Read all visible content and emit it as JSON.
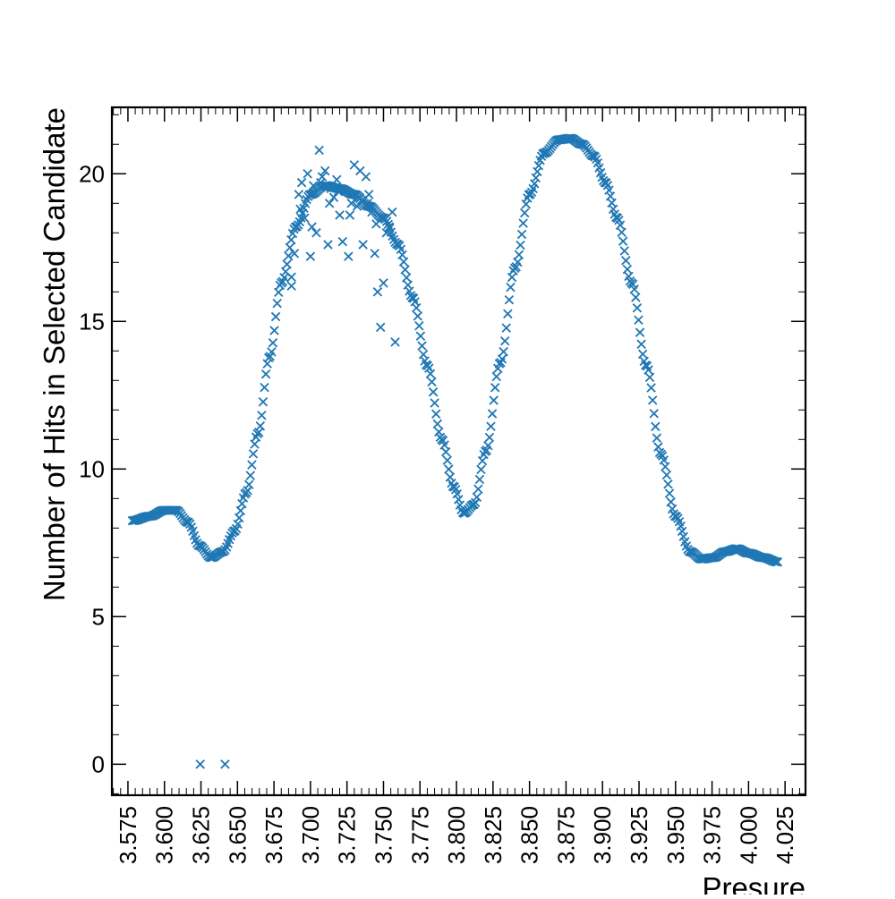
{
  "chart_data": {
    "type": "scatter",
    "title": "",
    "xlabel": "Presure",
    "ylabel": "Number of Hits in Selected Candidate",
    "xlim": [
      3.564,
      4.039
    ],
    "ylim": [
      -1.05,
      22.25
    ],
    "x_ticks": [
      "3.575",
      "3.600",
      "3.625",
      "3.650",
      "3.675",
      "3.700",
      "3.725",
      "3.750",
      "3.775",
      "3.800",
      "3.825",
      "3.850",
      "3.875",
      "3.900",
      "3.925",
      "3.950",
      "3.975",
      "4.000",
      "4.025"
    ],
    "y_ticks": [
      "0",
      "5",
      "10",
      "15",
      "20"
    ],
    "grid": false,
    "legend": "none",
    "marker": "x",
    "color": "#1f77b4",
    "curve": {
      "x": [
        3.578,
        3.59,
        3.6,
        3.608,
        3.616,
        3.624,
        3.632,
        3.64,
        3.648,
        3.656,
        3.664,
        3.672,
        3.68,
        3.69,
        3.7,
        3.71,
        3.72,
        3.73,
        3.74,
        3.75,
        3.76,
        3.77,
        3.78,
        3.79,
        3.798,
        3.805,
        3.812,
        3.82,
        3.83,
        3.84,
        3.85,
        3.86,
        3.87,
        3.878,
        3.886,
        3.894,
        3.902,
        3.91,
        3.92,
        3.93,
        3.94,
        3.95,
        3.96,
        3.968,
        3.976,
        3.984,
        3.992,
        4.0,
        4.01,
        4.02
      ],
      "y": [
        8.25,
        8.4,
        8.6,
        8.6,
        8.2,
        7.4,
        7.0,
        7.2,
        7.9,
        9.2,
        11.2,
        13.8,
        16.3,
        18.2,
        19.3,
        19.6,
        19.5,
        19.3,
        18.9,
        18.5,
        17.6,
        15.8,
        13.5,
        11.0,
        9.4,
        8.5,
        8.8,
        10.6,
        13.6,
        16.8,
        19.3,
        20.7,
        21.15,
        21.2,
        21.0,
        20.6,
        19.7,
        18.5,
        16.3,
        13.5,
        10.5,
        8.4,
        7.2,
        6.95,
        7.0,
        7.2,
        7.3,
        7.15,
        7.0,
        6.85
      ]
    },
    "scatter_x": [
      3.687,
      3.689,
      3.692,
      3.694,
      3.696,
      3.698,
      3.7,
      3.702,
      3.704,
      3.706,
      3.708,
      3.71,
      3.712,
      3.714,
      3.716,
      3.718,
      3.72,
      3.722,
      3.724,
      3.726,
      3.728,
      3.73,
      3.732,
      3.734,
      3.736,
      3.738,
      3.74,
      3.742,
      3.744,
      3.746,
      3.748,
      3.75,
      3.752,
      3.754,
      3.756,
      3.758,
      3.687,
      3.693,
      3.701,
      3.707,
      3.713,
      3.719,
      3.727,
      3.733,
      3.739,
      3.745
    ],
    "scatter_y": [
      16.5,
      17.3,
      19.3,
      19.7,
      18.5,
      20.0,
      17.2,
      19.6,
      18.0,
      20.8,
      19.9,
      20.1,
      17.6,
      19.5,
      19.2,
      19.8,
      18.6,
      17.7,
      19.4,
      17.2,
      19.0,
      20.3,
      18.9,
      20.1,
      17.6,
      19.9,
      19.3,
      18.7,
      17.3,
      16.0,
      14.8,
      16.3,
      18.0,
      18.2,
      18.7,
      14.3,
      16.2,
      18.8,
      18.2,
      19.7,
      19.0,
      19.4,
      18.6,
      19.2,
      19.0,
      18.3
    ],
    "outliers_x": [
      3.6245,
      3.6415
    ],
    "outliers_y": [
      0,
      0
    ]
  }
}
